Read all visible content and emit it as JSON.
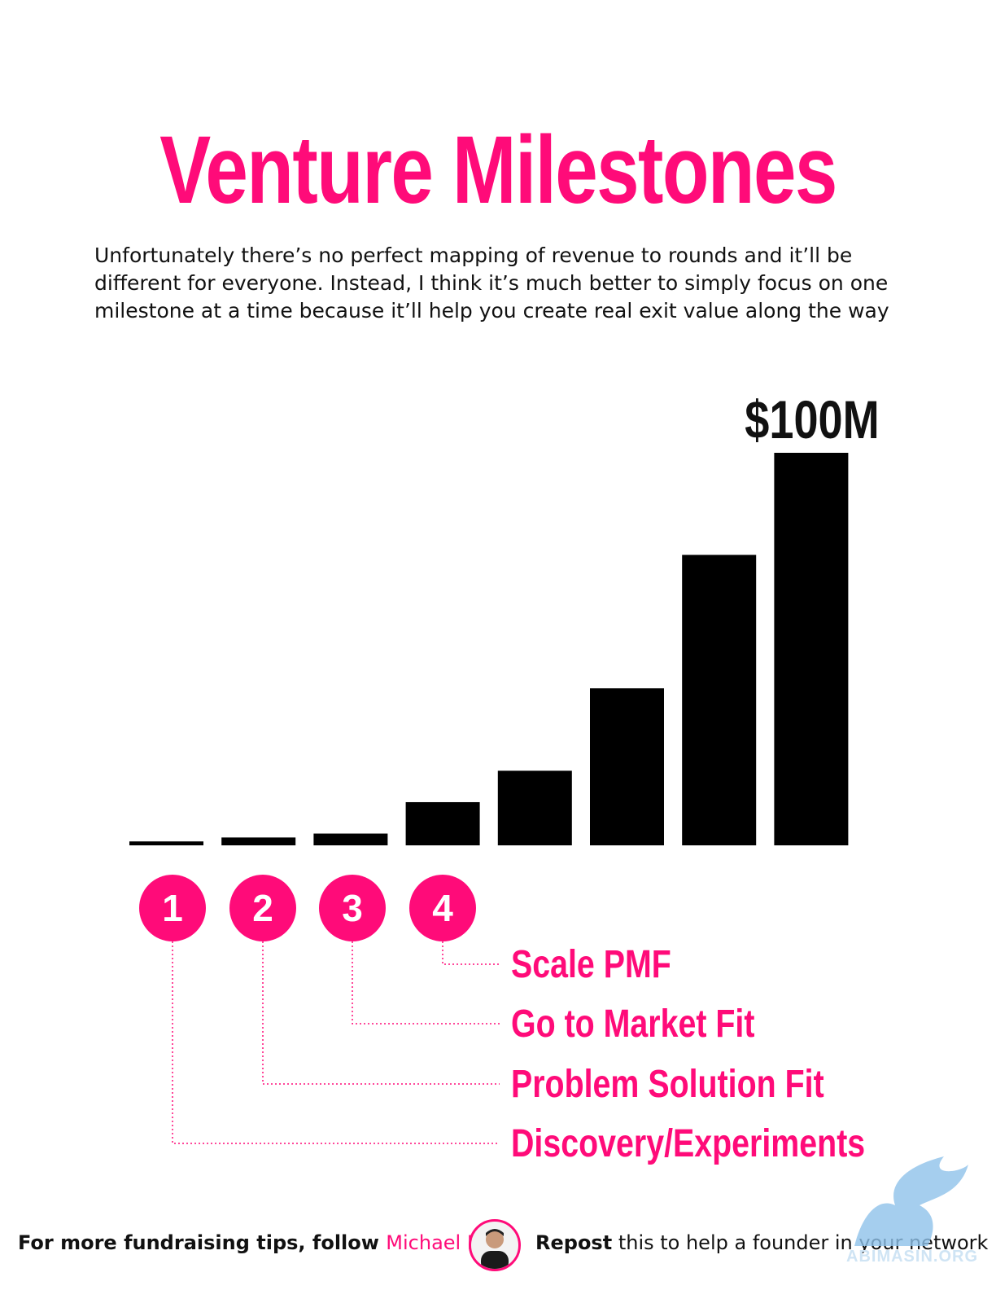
{
  "title": "Venture Milestones",
  "description": "Unfortunately there’s no perfect mapping of revenue to rounds and it’ll be different for everyone. Instead, I think it’s much better to simply focus on one milestone at a time because it’ll help you create real exit value along the way",
  "colors": {
    "accent": "#ff0b79",
    "bar": "#000000",
    "text": "#111111"
  },
  "chart_data": {
    "type": "bar",
    "values": [
      1,
      2,
      3,
      11,
      19,
      40,
      74,
      100
    ],
    "ylim": [
      0,
      100
    ],
    "top_label": "$100M",
    "grid": false,
    "markers": [
      "1",
      "2",
      "3",
      "4"
    ],
    "milestones": [
      "Scale PMF",
      "Go to Market Fit",
      "Problem Solution Fit",
      "Discovery/Experiments"
    ]
  },
  "footer": {
    "follow_text": "For more fundraising tips, follow",
    "author": "Michael Ho",
    "repost_bold": "Repost",
    "repost_rest": "this to help a founder in your network"
  },
  "watermark": {
    "text": "ABIMASIN.ORG"
  }
}
